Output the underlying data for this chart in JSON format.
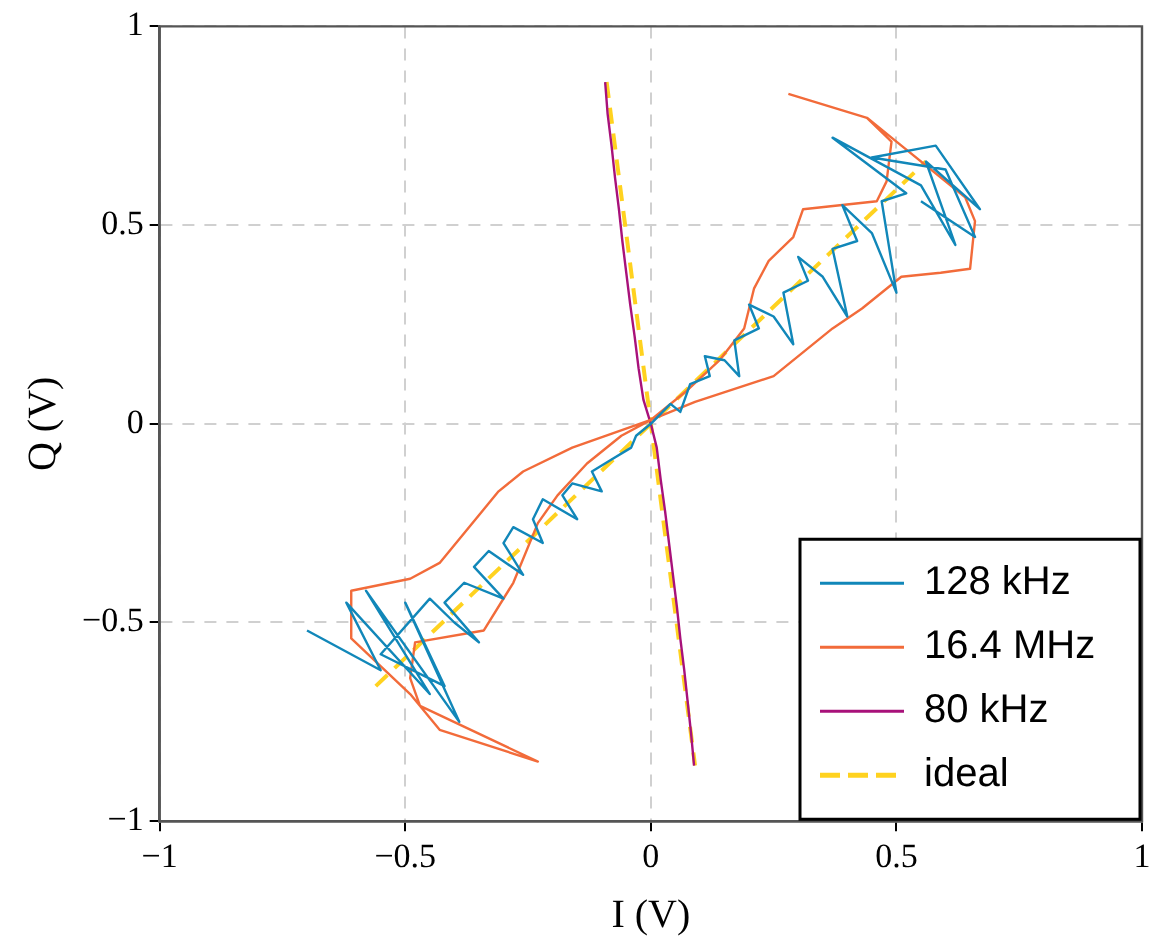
{
  "chart_data": {
    "type": "line",
    "xlabel": "I (V)",
    "ylabel": "Q (V)",
    "xlim": [
      -1,
      1
    ],
    "ylim": [
      -1,
      1
    ],
    "xticks": [
      {
        "value": -1,
        "label": "−1"
      },
      {
        "value": -0.5,
        "label": "−0.5"
      },
      0,
      0.5,
      1
    ],
    "yticks": [
      {
        "value": -1,
        "label": "−1"
      },
      {
        "value": -0.5,
        "label": "−0.5"
      },
      0,
      0.5,
      1
    ],
    "grid": true,
    "legend": "bottom right",
    "series": [
      {
        "name": "128 kHz",
        "color": "#1187b9",
        "x": [
          -0.7,
          -0.55,
          -0.62,
          -0.45,
          -0.58,
          -0.39,
          -0.5,
          -0.42,
          -0.55,
          -0.45,
          -0.4,
          -0.35,
          -0.42,
          -0.38,
          -0.3,
          -0.36,
          -0.33,
          -0.26,
          -0.3,
          -0.28,
          -0.22,
          -0.24,
          -0.22,
          -0.15,
          -0.18,
          -0.16,
          -0.1,
          -0.12,
          -0.08,
          -0.04,
          -0.03,
          0,
          0.04,
          0.06,
          0.08,
          0.12,
          0.11,
          0.15,
          0.18,
          0.17,
          0.22,
          0.2,
          0.25,
          0.29,
          0.27,
          0.32,
          0.3,
          0.35,
          0.4,
          0.37,
          0.42,
          0.39,
          0.45,
          0.5,
          0.47,
          0.52,
          0.37,
          0.55,
          0.62,
          0.56,
          0.67,
          0.58,
          0.45,
          0.6,
          0.66,
          0.55
        ],
        "values": [
          -0.52,
          -0.62,
          -0.45,
          -0.68,
          -0.42,
          -0.75,
          -0.45,
          -0.66,
          -0.58,
          -0.44,
          -0.5,
          -0.55,
          -0.45,
          -0.4,
          -0.44,
          -0.36,
          -0.32,
          -0.38,
          -0.3,
          -0.26,
          -0.3,
          -0.24,
          -0.19,
          -0.24,
          -0.18,
          -0.15,
          -0.17,
          -0.12,
          -0.09,
          -0.06,
          -0.03,
          0,
          0.05,
          0.03,
          0.1,
          0.12,
          0.17,
          0.16,
          0.12,
          0.21,
          0.24,
          0.3,
          0.27,
          0.2,
          0.33,
          0.36,
          0.42,
          0.37,
          0.27,
          0.44,
          0.46,
          0.55,
          0.48,
          0.33,
          0.56,
          0.58,
          0.72,
          0.6,
          0.45,
          0.66,
          0.54,
          0.7,
          0.67,
          0.64,
          0.47,
          0.56
        ]
      },
      {
        "name": "16.4 MHz",
        "color": "#f26b3a",
        "x": [
          0.28,
          0.44,
          0.49,
          0.48,
          0.46,
          0.31,
          0.29,
          0.24,
          0.21,
          0.19,
          0.14,
          0.07,
          0,
          -0.06,
          -0.13,
          -0.19,
          -0.23,
          -0.28,
          -0.34,
          -0.48,
          -0.49,
          -0.47,
          -0.23,
          -0.43,
          -0.49,
          -0.61,
          -0.61,
          -0.49,
          -0.43,
          -0.31,
          -0.26,
          -0.16,
          0,
          0.09,
          0.25,
          0.37,
          0.43,
          0.51,
          0.59,
          0.65,
          0.66,
          0.64,
          0.49,
          0.44
        ],
        "values": [
          0.83,
          0.77,
          0.71,
          0.61,
          0.56,
          0.54,
          0.47,
          0.41,
          0.34,
          0.24,
          0.16,
          0.08,
          0.01,
          -0.03,
          -0.1,
          -0.18,
          -0.25,
          -0.4,
          -0.52,
          -0.55,
          -0.64,
          -0.71,
          -0.85,
          -0.77,
          -0.68,
          -0.54,
          -0.42,
          -0.39,
          -0.35,
          -0.17,
          -0.12,
          -0.06,
          0.01,
          0.055,
          0.12,
          0.24,
          0.29,
          0.37,
          0.38,
          0.39,
          0.51,
          0.57,
          0.72,
          0.77
        ]
      },
      {
        "name": "80 kHz",
        "color": "#a8117a",
        "x": [
          -0.093,
          -0.088,
          -0.08,
          -0.073,
          -0.065,
          -0.058,
          -0.05,
          -0.042,
          -0.033,
          -0.025,
          -0.015,
          0,
          0.012,
          0.02,
          0.029,
          0.037,
          0.045,
          0.053,
          0.06,
          0.068,
          0.075,
          0.082,
          0.088
        ],
        "values": [
          0.86,
          0.78,
          0.7,
          0.62,
          0.54,
          0.46,
          0.38,
          0.3,
          0.22,
          0.14,
          0.06,
          0,
          -0.06,
          -0.14,
          -0.22,
          -0.3,
          -0.38,
          -0.46,
          -0.54,
          -0.62,
          -0.7,
          -0.78,
          -0.86
        ]
      },
      {
        "name": "ideal",
        "color": "#ffd21f",
        "line_style": "dashed",
        "x": [
          -0.56,
          0.56,
          null,
          -0.09,
          0.09
        ],
        "values": [
          -0.66,
          0.66,
          null,
          0.86,
          -0.86
        ]
      }
    ]
  }
}
